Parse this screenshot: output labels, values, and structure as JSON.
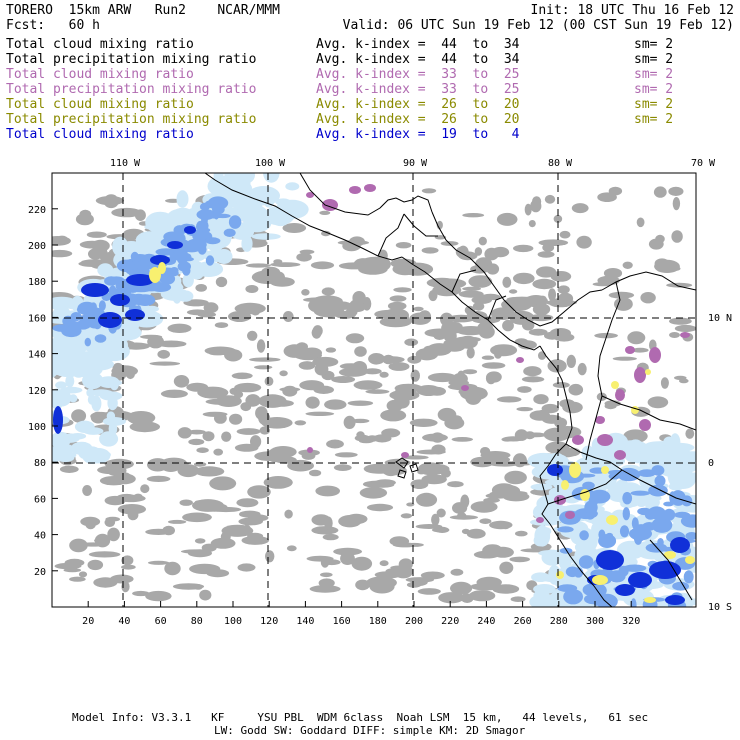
{
  "header": {
    "title": "TORERO  15km ARW   Run2    NCAR/MMM",
    "init": "Init: 18 UTC Thu 16 Feb 12",
    "fcst": "Fcst:   60 h",
    "valid": "Valid: 06 UTC Sun 19 Feb 12 (00 CST Sun 19 Feb 12)"
  },
  "legend": [
    {
      "field": "Total cloud mixing ratio",
      "kindex": "Avg. k-index =  44  to  34",
      "sm": "sm= 2",
      "color": "#000000"
    },
    {
      "field": "Total precipitation mixing ratio",
      "kindex": "Avg. k-index =  44  to  34",
      "sm": "sm= 2",
      "color": "#000000"
    },
    {
      "field": "Total cloud mixing ratio",
      "kindex": "Avg. k-index =  33  to  25",
      "sm": "sm= 2",
      "color": "#b06ab0"
    },
    {
      "field": "Total precipitation mixing ratio",
      "kindex": "Avg. k-index =  33  to  25",
      "sm": "sm= 2",
      "color": "#b06ab0"
    },
    {
      "field": "Total cloud mixing ratio",
      "kindex": "Avg. k-index =  26  to  20",
      "sm": "sm= 2",
      "color": "#8a8a00"
    },
    {
      "field": "Total precipitation mixing ratio",
      "kindex": "Avg. k-index =  26  to  20",
      "sm": "sm= 2",
      "color": "#8a8a00"
    },
    {
      "field": "Total cloud mixing ratio",
      "kindex": "Avg. k-index =  19  to   4",
      "sm": "",
      "color": "#0000cc"
    }
  ],
  "map": {
    "lon_labels": [
      "110 W",
      "100 W",
      "90 W",
      "80 W",
      "70 W"
    ],
    "lat_labels": [
      "10 N",
      "0",
      "10 S"
    ],
    "x_ticks": [
      "20",
      "40",
      "60",
      "80",
      "100",
      "120",
      "140",
      "160",
      "180",
      "200",
      "220",
      "240",
      "260",
      "280",
      "300",
      "320"
    ],
    "y_ticks": [
      "20",
      "40",
      "60",
      "80",
      "100",
      "120",
      "140",
      "160",
      "180",
      "200",
      "220"
    ],
    "colors": {
      "gray_cloud": "#a8a8a8",
      "light_blue": "#cfe8f8",
      "mid_blue": "#7aa8ee",
      "deep_blue": "#1030d8",
      "purple": "#b06ab0",
      "yellow": "#f8f070",
      "coast": "#000000"
    }
  },
  "footer": {
    "line1": "Model Info: V3.3.1   KF     YSU PBL  WDM 6class  Noah LSM  15 km,   44 levels,   61 sec",
    "line2": "LW: Godd SW: Goddard DIFF: simple KM: 2D Smagor"
  }
}
